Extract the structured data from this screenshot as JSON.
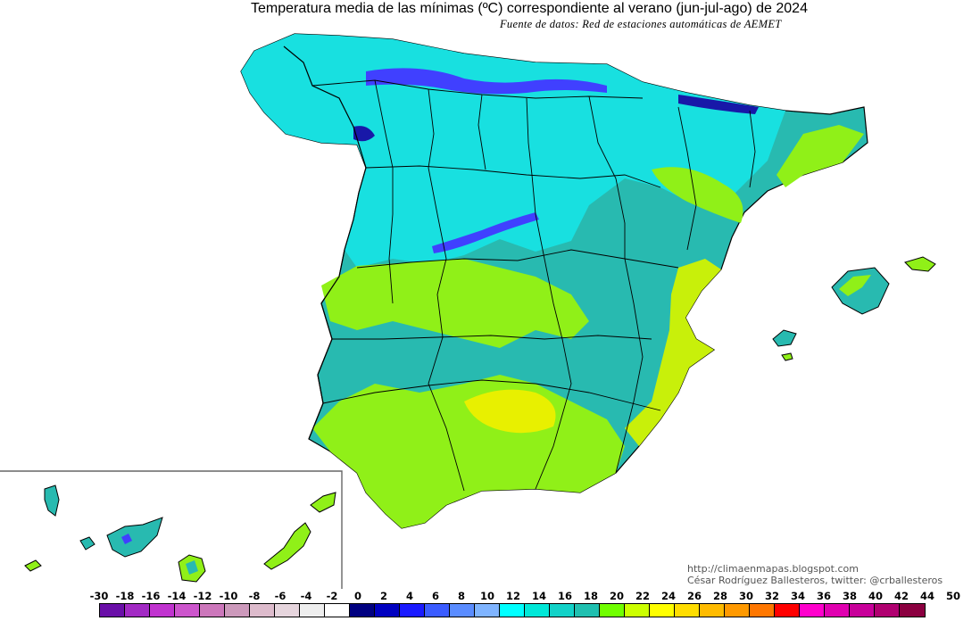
{
  "title": "Temperatura media de las mínimas (ºC) correspondiente al verano (jun-jul-ago)  de 2024",
  "source": "Fuente de datos: Red de estaciones automáticas de AEMET",
  "credits": {
    "blog": "http://climaenmapas.blogspot.com",
    "author": "César Rodríguez Ballesteros, twitter: @crballesteros"
  },
  "legend": {
    "ticks": [
      "-30",
      "-18",
      "-16",
      "-14",
      "-12",
      "-10",
      "-8",
      "-6",
      "-4",
      "-2",
      "0",
      "2",
      "4",
      "6",
      "8",
      "10",
      "12",
      "14",
      "16",
      "18",
      "20",
      "22",
      "24",
      "26",
      "28",
      "30",
      "32",
      "34",
      "36",
      "38",
      "40",
      "42",
      "44",
      "50"
    ],
    "colors": [
      "#6a0fa8",
      "#a22ac4",
      "#c033cf",
      "#cc55cc",
      "#cc77bb",
      "#cc99bb",
      "#ddbbcc",
      "#e6d5dd",
      "#eeeeee",
      "#ffffff",
      "#000080",
      "#0000c0",
      "#1a1aff",
      "#3b5cff",
      "#5a8cff",
      "#7fb4ff",
      "#00ffff",
      "#00e8d8",
      "#12d2c8",
      "#20c0b0",
      "#70ff00",
      "#ccff00",
      "#ffff00",
      "#ffdd00",
      "#ffbb00",
      "#ff9900",
      "#ff7700",
      "#ff0000",
      "#ff00cc",
      "#e000b0",
      "#c8009a",
      "#b00070",
      "#8b0040"
    ]
  },
  "map_colors": {
    "cyan": "#18e0e0",
    "teal": "#28bab0",
    "green": "#90f018",
    "yellow_green": "#c8f00a",
    "yellow": "#e8f000",
    "blue": "#4040ff",
    "dark_blue": "#1818a8",
    "border": "#000000"
  }
}
